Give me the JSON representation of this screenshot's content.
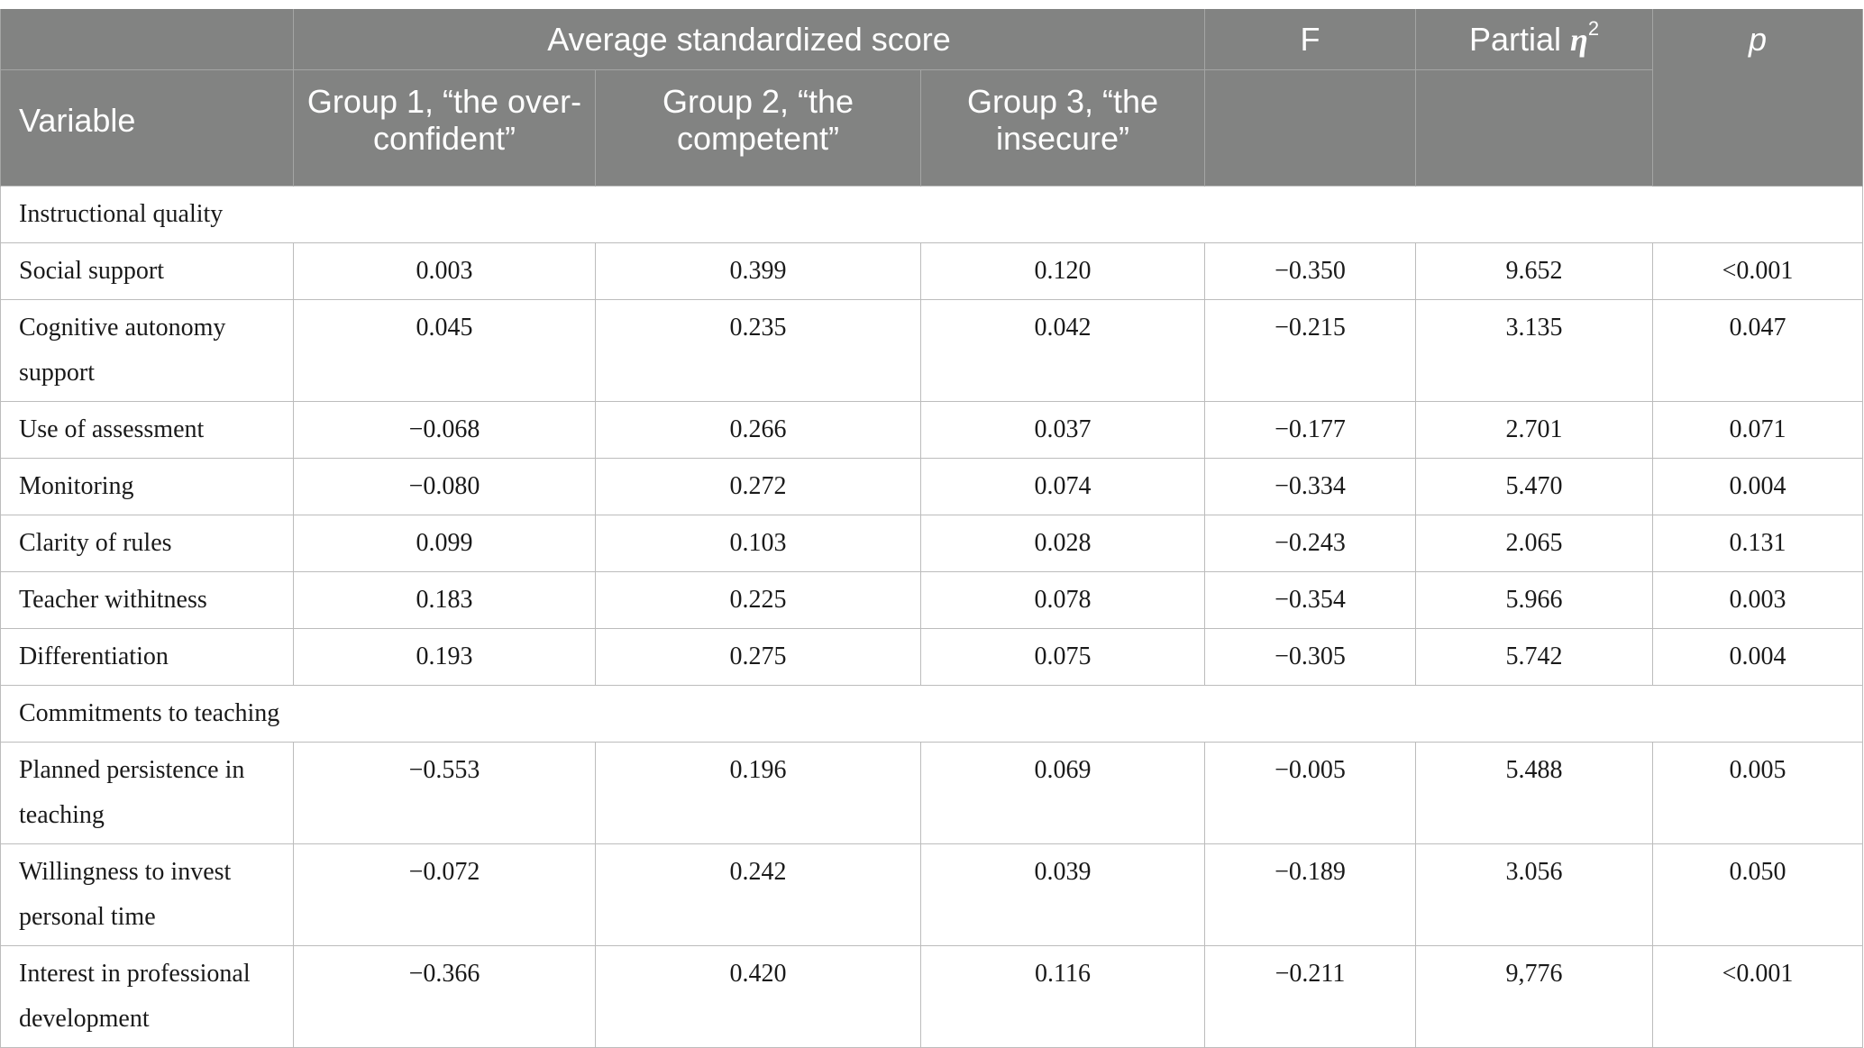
{
  "header": {
    "group_span_label": "Average standardized score",
    "f_label": "F",
    "eta_prefix": "Partial ",
    "eta_symbol": "η",
    "eta_sup": "2",
    "p_label": "p",
    "variable_label": "Variable",
    "group1_label": "Group 1, “the over-confident”",
    "group2_label": "Group 2, “the competent”",
    "group3_label": "Group 3, “the insecure”"
  },
  "sections": [
    {
      "title": "Instructional quality",
      "rows": [
        {
          "variable": "Social support",
          "g1": "0.003",
          "g2": "0.399",
          "g3": "0.120",
          "f": "−0.350",
          "eta": "9.652",
          "p": "<0.001"
        },
        {
          "variable": "Cognitive autonomy support",
          "g1": "0.045",
          "g2": "0.235",
          "g3": "0.042",
          "f": "−0.215",
          "eta": "3.135",
          "p": "0.047"
        },
        {
          "variable": "Use of assessment",
          "g1": "−0.068",
          "g2": "0.266",
          "g3": "0.037",
          "f": "−0.177",
          "eta": "2.701",
          "p": "0.071"
        },
        {
          "variable": "Monitoring",
          "g1": "−0.080",
          "g2": "0.272",
          "g3": "0.074",
          "f": "−0.334",
          "eta": "5.470",
          "p": "0.004"
        },
        {
          "variable": "Clarity of rules",
          "g1": "0.099",
          "g2": "0.103",
          "g3": "0.028",
          "f": "−0.243",
          "eta": "2.065",
          "p": "0.131"
        },
        {
          "variable": "Teacher withitness",
          "g1": "0.183",
          "g2": "0.225",
          "g3": "0.078",
          "f": "−0.354",
          "eta": "5.966",
          "p": "0.003"
        },
        {
          "variable": "Differentiation",
          "g1": "0.193",
          "g2": "0.275",
          "g3": "0.075",
          "f": "−0.305",
          "eta": "5.742",
          "p": "0.004"
        }
      ]
    },
    {
      "title": "Commitments to teaching",
      "rows": [
        {
          "variable": "Planned persistence in teaching",
          "g1": "−0.553",
          "g2": "0.196",
          "g3": "0.069",
          "f": "−0.005",
          "eta": "5.488",
          "p": "0.005"
        },
        {
          "variable": "Willingness to invest personal time",
          "g1": "−0.072",
          "g2": "0.242",
          "g3": "0.039",
          "f": "−0.189",
          "eta": "3.056",
          "p": "0.050"
        },
        {
          "variable": "Interest in professional development",
          "g1": "−0.366",
          "g2": "0.420",
          "g3": "0.116",
          "f": "−0.211",
          "eta": "9,776",
          "p": "<0.001"
        }
      ]
    }
  ]
}
